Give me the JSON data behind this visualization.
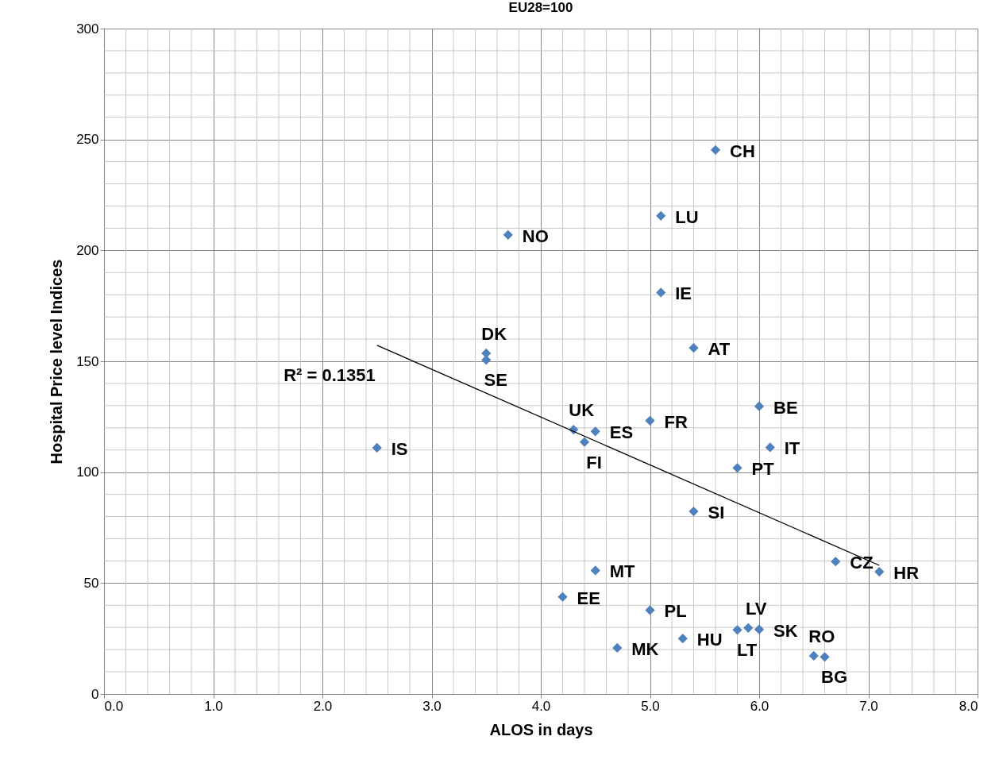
{
  "chart_data": {
    "type": "scatter",
    "title": "EU28=100",
    "xlabel": "ALOS in days",
    "ylabel": "Hospital Price level Indices",
    "xlim": [
      0,
      8
    ],
    "ylim": [
      0,
      300
    ],
    "xticks": [
      {
        "value": 0,
        "label": "0.0"
      },
      {
        "value": 1,
        "label": "1.0"
      },
      {
        "value": 2,
        "label": "2.0"
      },
      {
        "value": 3,
        "label": "3.0"
      },
      {
        "value": 4,
        "label": "4.0"
      },
      {
        "value": 5,
        "label": "5.0"
      },
      {
        "value": 6,
        "label": "6.0"
      },
      {
        "value": 7,
        "label": "7.0"
      },
      {
        "value": 8,
        "label": "8.0"
      }
    ],
    "yticks": [
      0,
      50,
      100,
      150,
      200,
      250,
      300
    ],
    "grid": true,
    "marker": "diamond",
    "series": [
      {
        "color": "#4f81bd",
        "x": [
          2.5,
          3.5,
          3.5,
          3.7,
          5.6,
          5.1,
          5.1,
          5.4,
          6.0,
          6.1,
          5.0,
          4.3,
          4.5,
          4.4,
          5.8,
          5.4,
          4.5,
          4.2,
          5.0,
          4.7,
          5.3,
          5.8,
          5.9,
          6.0,
          6.5,
          6.6,
          6.7,
          7.1
        ],
        "values": [
          111,
          153.6,
          150.6,
          207,
          245.3,
          215.6,
          181,
          156,
          129.7,
          111.2,
          123.2,
          119.2,
          118.4,
          113.6,
          101.9,
          82.3,
          55.7,
          43.8,
          37.8,
          20.8,
          25.0,
          28.9,
          29.8,
          29.1,
          17.2,
          16.7,
          59.7,
          55.1
        ]
      },
      {
        "type": "line",
        "marker": "none",
        "color": "#000000",
        "x": [
          2.5,
          7.1
        ],
        "values": [
          157.2,
          58.0
        ]
      }
    ],
    "annotations": [
      {
        "text": "IS",
        "x": 2.5,
        "y": 111
      },
      {
        "text": "DK",
        "x": 3.5,
        "y": 153.6
      },
      {
        "text": "SE",
        "x": 3.5,
        "y": 150.6
      },
      {
        "text": "NO",
        "x": 3.7,
        "y": 207
      },
      {
        "text": "CH",
        "x": 5.6,
        "y": 245.3
      },
      {
        "text": "LU",
        "x": 5.1,
        "y": 215.6
      },
      {
        "text": "IE",
        "x": 5.1,
        "y": 181
      },
      {
        "text": "AT",
        "x": 5.4,
        "y": 156
      },
      {
        "text": "BE",
        "x": 6.0,
        "y": 129.7
      },
      {
        "text": "IT",
        "x": 6.1,
        "y": 111.2
      },
      {
        "text": "FR",
        "x": 5.0,
        "y": 123.2
      },
      {
        "text": "UK",
        "x": 4.3,
        "y": 119.2
      },
      {
        "text": "ES",
        "x": 4.5,
        "y": 118.4
      },
      {
        "text": "FI",
        "x": 4.4,
        "y": 113.6
      },
      {
        "text": "PT",
        "x": 5.8,
        "y": 101.9
      },
      {
        "text": "SI",
        "x": 5.4,
        "y": 82.3
      },
      {
        "text": "MT",
        "x": 4.5,
        "y": 55.7
      },
      {
        "text": "EE",
        "x": 4.2,
        "y": 43.8
      },
      {
        "text": "PL",
        "x": 5.0,
        "y": 37.8
      },
      {
        "text": "MK",
        "x": 4.7,
        "y": 20.8
      },
      {
        "text": "HU",
        "x": 5.3,
        "y": 25.0
      },
      {
        "text": "LT",
        "x": 5.8,
        "y": 28.9
      },
      {
        "text": "LV",
        "x": 5.9,
        "y": 29.8
      },
      {
        "text": "SK",
        "x": 6.0,
        "y": 29.1
      },
      {
        "text": "RO",
        "x": 6.5,
        "y": 17.2
      },
      {
        "text": "BG",
        "x": 6.6,
        "y": 16.7
      },
      {
        "text": "CZ",
        "x": 6.7,
        "y": 59.7
      },
      {
        "text": "HR",
        "x": 7.1,
        "y": 55.1
      },
      "R² = 0.1351"
    ]
  }
}
